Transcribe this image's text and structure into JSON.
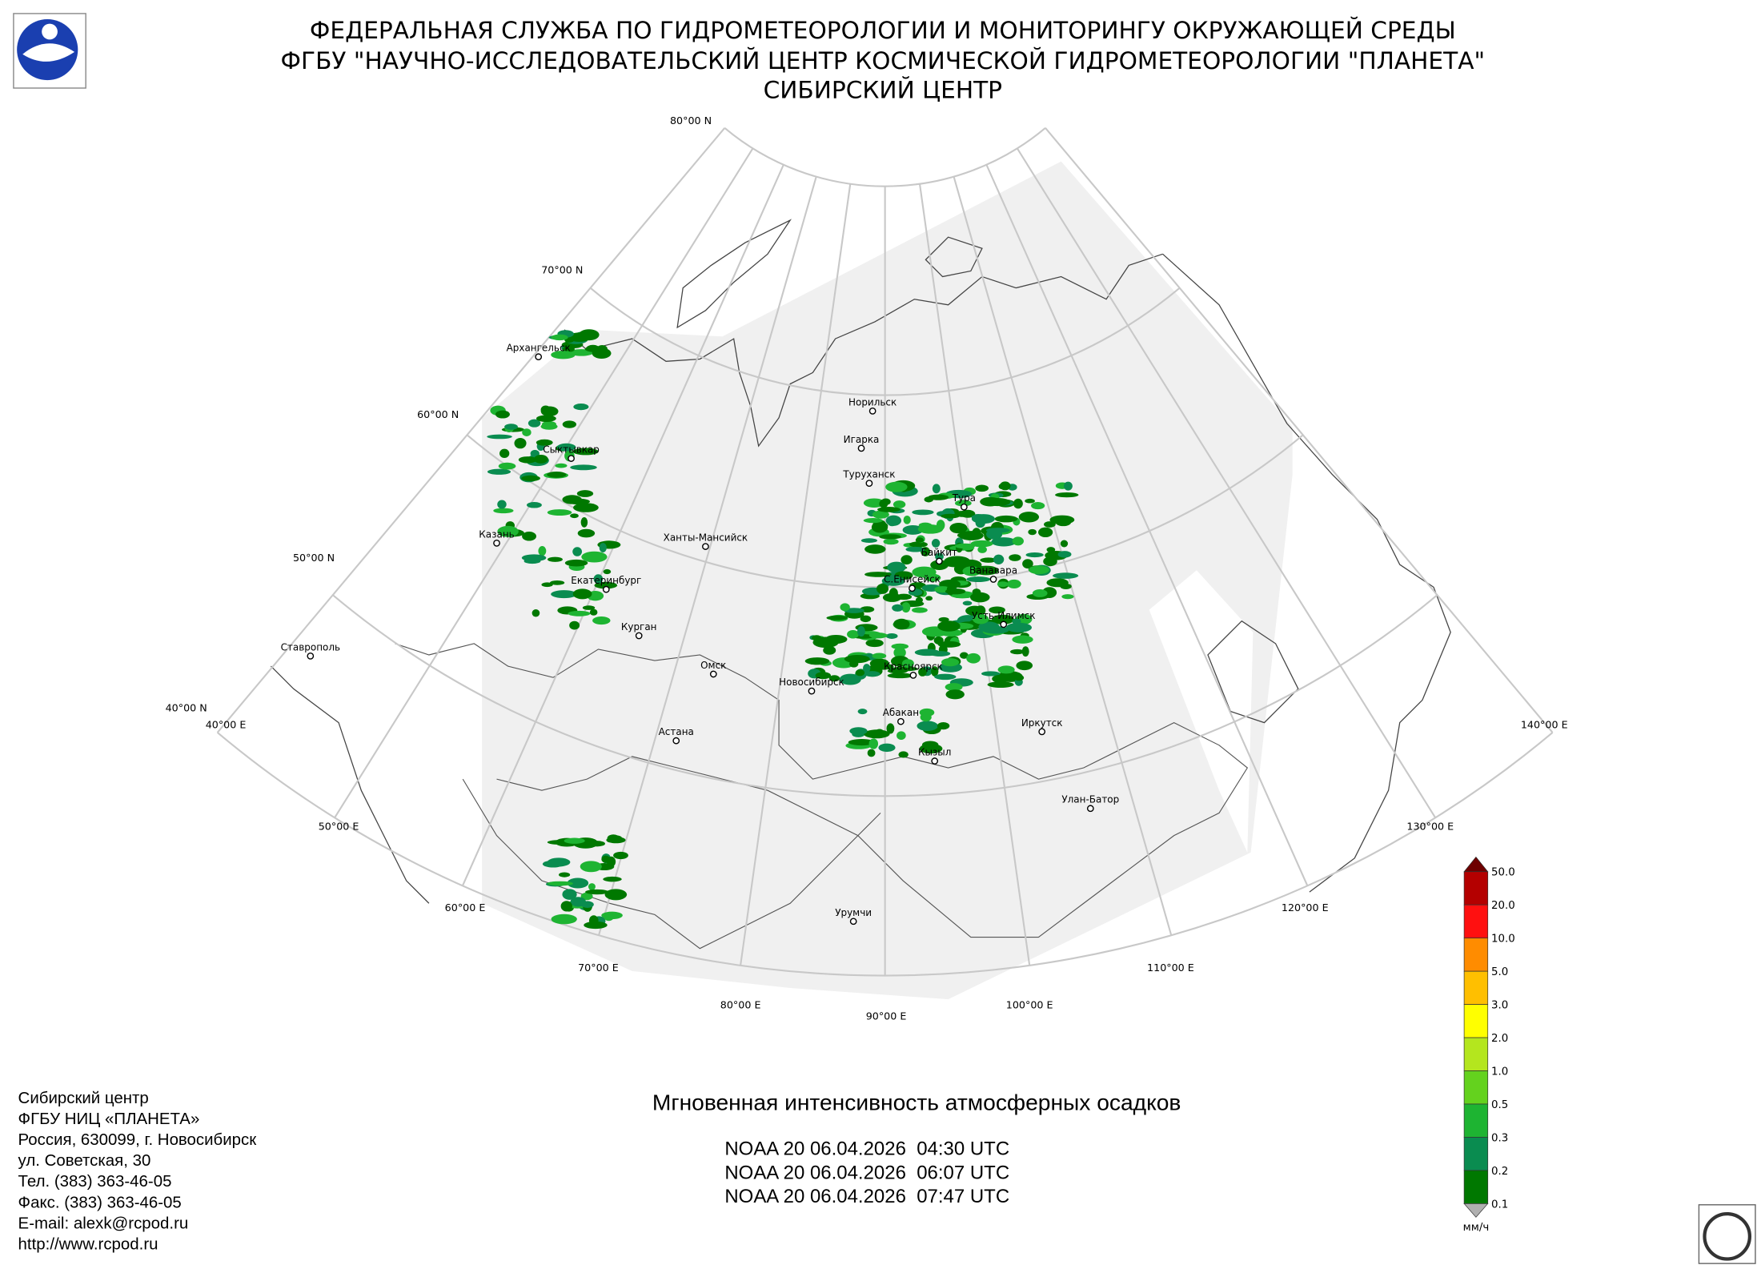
{
  "header": {
    "lines": [
      "ФЕДЕРАЛЬНАЯ СЛУЖБА ПО ГИДРОМЕТЕОРОЛОГИИ И МОНИТОРИНГУ ОКРУЖАЮЩЕЙ СРЕДЫ",
      "ФГБУ \"НАУЧНО-ИССЛЕДОВАТЕЛЬСКИЙ ЦЕНТР КОСМИЧЕСКОЙ ГИДРОМЕТЕОРОЛОГИИ \"ПЛАНЕТА\"",
      "СИБИРСКИЙ ЦЕНТР"
    ]
  },
  "map": {
    "lat_labels": [
      "80°00 N",
      "70°00 N",
      "60°00 N",
      "50°00 N",
      "40°00 N"
    ],
    "lon_labels": [
      "40°00 E",
      "50°00 E",
      "60°00 E",
      "70°00 E",
      "80°00 E",
      "90°00 E",
      "100°00 E",
      "110°00 E",
      "120°00 E",
      "130°00 E",
      "140°00 E"
    ],
    "cities": [
      "Архангельск",
      "Сыктывкар",
      "Казань",
      "Ханты-Мансийск",
      "Екатеринбург",
      "Курган",
      "Ставрополь",
      "Омск",
      "Астана",
      "Новосибирск",
      "Норильск",
      "Игарка",
      "Туруханск",
      "Тура",
      "Байкит",
      "Ванавара",
      "С.Енисейск",
      "Усть-Илимск",
      "Красноярск",
      "Абакан",
      "Иркутск",
      "Кызыл",
      "Улан-Батор",
      "Урумчи"
    ]
  },
  "colorbar": {
    "labels": [
      "50.0",
      "20.0",
      "10.0",
      "5.0",
      "3.0",
      "2.0",
      "1.0",
      "0.5",
      "0.3",
      "0.2",
      "0.1"
    ],
    "colors": [
      "#b40000",
      "#ff1010",
      "#ff8c00",
      "#ffbf00",
      "#ffff00",
      "#b4e61e",
      "#64d21e",
      "#1eb432",
      "#0a8c50",
      "#007800"
    ],
    "over_color": "#6e0000",
    "under_color": "#b0b0b0",
    "unit": "мм/ч"
  },
  "product": {
    "title": "Мгновенная интенсивность атмосферных осадков",
    "passes": [
      "NOAA 20 06.04.2026  04:30 UTC",
      "NOAA 20 06.04.2026  06:07 UTC",
      "NOAA 20 06.04.2026  07:47 UTC"
    ]
  },
  "footer": {
    "lines": [
      "Сибирский центр",
      "ФГБУ НИЦ «ПЛАНЕТА»",
      "Россия, 630099, г. Новосибирск",
      "ул. Советская, 30",
      "Тел. (383) 363-46-05",
      "Факс. (383) 363-46-05",
      "E-mail: alexk@rcpod.ru",
      "http://www.rcpod.ru"
    ]
  }
}
